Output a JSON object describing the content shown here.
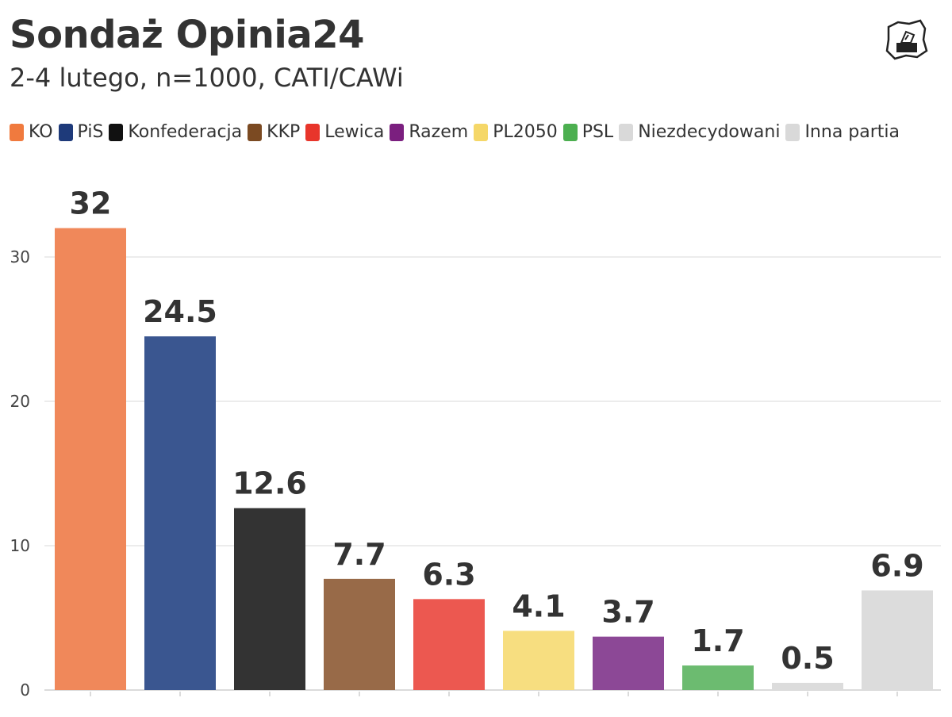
{
  "header": {
    "title": "Sondaż Opinia24",
    "subtitle": "2-4 lutego, n=1000, CATI/CAWi"
  },
  "logo": {
    "icon": "ballot-box-poland-icon"
  },
  "legend": [
    {
      "label": "KO",
      "color": "#f07a3e"
    },
    {
      "label": "PiS",
      "color": "#1e3a7a"
    },
    {
      "label": "Konfederacja",
      "color": "#111111"
    },
    {
      "label": "KKP",
      "color": "#7b4a22"
    },
    {
      "label": "Lewica",
      "color": "#e8352b"
    },
    {
      "label": "Razem",
      "color": "#7b1f7f"
    },
    {
      "label": "PL2050",
      "color": "#f5d768"
    },
    {
      "label": "PSL",
      "color": "#4caf50"
    },
    {
      "label": "Niezdecydowani",
      "color": "#d9d9d9"
    },
    {
      "label": "Inna partia",
      "color": "#d9d9d9"
    }
  ],
  "chart_data": {
    "type": "bar",
    "categories": [
      "KO",
      "PiS",
      "Konfederacja",
      "KKP",
      "Lewica",
      "PL2050",
      "Razem",
      "PSL",
      "Niezdecydowani",
      "Inna partia"
    ],
    "values": [
      32,
      24.5,
      12.6,
      7.7,
      6.3,
      4.1,
      3.7,
      1.7,
      0.5,
      6.9
    ],
    "value_labels": [
      "32",
      "24.5",
      "12.6",
      "7.7",
      "6.3",
      "4.1",
      "3.7",
      "1.7",
      "0.5",
      "6.9"
    ],
    "colors": [
      "#f0885a",
      "#3a5690",
      "#333333",
      "#986a48",
      "#ec5850",
      "#f7de80",
      "#8c4896",
      "#6cbb70",
      "#dcdcdc",
      "#dcdcdc"
    ],
    "ylim": [
      0,
      35
    ],
    "yticks": [
      0,
      10,
      20,
      30
    ],
    "grid": true,
    "legend_position": "top",
    "xlabel": "",
    "ylabel": ""
  }
}
